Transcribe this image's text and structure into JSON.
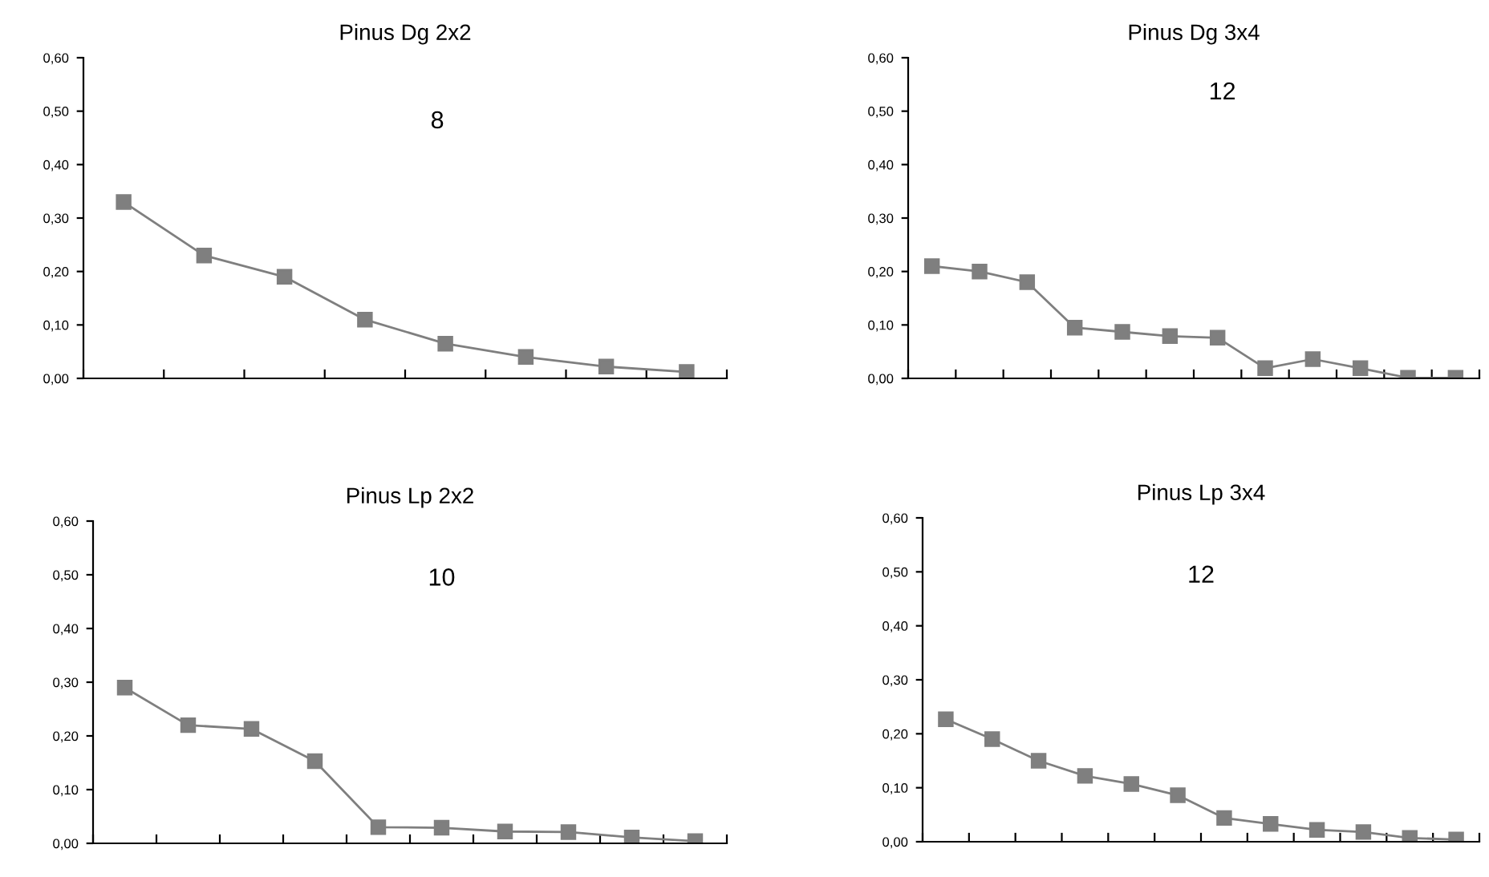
{
  "chart_data": [
    {
      "type": "line",
      "title": "Pinus Dg 2x2",
      "categories": [
        null,
        null,
        null,
        null,
        null,
        null,
        null,
        null
      ],
      "series": [
        {
          "color": "#7f7f7f",
          "values": [
            0.33,
            0.23,
            0.19,
            0.11,
            0.065,
            0.04,
            0.022,
            0.012
          ]
        }
      ],
      "ylim": [
        0,
        0.6
      ],
      "yticks": [
        {
          "value": 0,
          "label": "0,00"
        },
        {
          "value": 0.1,
          "label": "0,10"
        },
        {
          "value": 0.2,
          "label": "0,20"
        },
        {
          "value": 0.3,
          "label": "0,30"
        },
        {
          "value": 0.4,
          "label": "0,40"
        },
        {
          "value": 0.5,
          "label": "0,50"
        },
        {
          "value": 0.6,
          "label": "0,60"
        }
      ],
      "annotations": [
        "8"
      ],
      "marker": "square",
      "grid": false,
      "legend": false,
      "tick_labels": "y"
    },
    {
      "type": "line",
      "title": "Pinus Dg 3x4",
      "categories": [
        null,
        null,
        null,
        null,
        null,
        null,
        null,
        null,
        null,
        null,
        null,
        null
      ],
      "series": [
        {
          "color": "#7f7f7f",
          "values": [
            0.21,
            0.2,
            0.18,
            0.095,
            0.087,
            0.079,
            0.076,
            0.019,
            0.036,
            0.019,
            0.001,
            0.001
          ]
        }
      ],
      "ylim": [
        0,
        0.6
      ],
      "yticks": [
        {
          "value": 0,
          "label": "0,00"
        },
        {
          "value": 0.1,
          "label": "0,10"
        },
        {
          "value": 0.2,
          "label": "0,20"
        },
        {
          "value": 0.3,
          "label": "0,30"
        },
        {
          "value": 0.4,
          "label": "0,40"
        },
        {
          "value": 0.5,
          "label": "0,50"
        },
        {
          "value": 0.6,
          "label": "0,60"
        }
      ],
      "annotations": [
        "12"
      ],
      "marker": "square",
      "grid": false,
      "legend": false,
      "tick_labels": "y"
    },
    {
      "type": "line",
      "title": "Pinus Lp 2x2",
      "categories": [
        null,
        null,
        null,
        null,
        null,
        null,
        null,
        null,
        null,
        null
      ],
      "series": [
        {
          "color": "#7f7f7f",
          "values": [
            0.29,
            0.22,
            0.213,
            0.153,
            0.03,
            0.029,
            0.022,
            0.021,
            0.011,
            0.004
          ]
        }
      ],
      "ylim": [
        0,
        0.6
      ],
      "yticks": [
        {
          "value": 0,
          "label": "0,00"
        },
        {
          "value": 0.1,
          "label": "0,10"
        },
        {
          "value": 0.2,
          "label": "0,20"
        },
        {
          "value": 0.3,
          "label": "0,30"
        },
        {
          "value": 0.4,
          "label": "0,40"
        },
        {
          "value": 0.5,
          "label": "0,50"
        },
        {
          "value": 0.6,
          "label": "0,60"
        }
      ],
      "annotations": [
        "10"
      ],
      "marker": "square",
      "grid": false,
      "legend": false,
      "tick_labels": "y"
    },
    {
      "type": "line",
      "title": "Pinus Lp 3x4",
      "categories": [
        null,
        null,
        null,
        null,
        null,
        null,
        null,
        null,
        null,
        null,
        null,
        null
      ],
      "series": [
        {
          "color": "#7f7f7f",
          "values": [
            0.227,
            0.19,
            0.15,
            0.122,
            0.107,
            0.086,
            0.044,
            0.033,
            0.022,
            0.018,
            0.007,
            0.004
          ]
        }
      ],
      "ylim": [
        0,
        0.6
      ],
      "yticks": [
        {
          "value": 0,
          "label": "0,00"
        },
        {
          "value": 0.1,
          "label": "0,10"
        },
        {
          "value": 0.2,
          "label": "0,20"
        },
        {
          "value": 0.3,
          "label": "0,30"
        },
        {
          "value": 0.4,
          "label": "0,40"
        },
        {
          "value": 0.5,
          "label": "0,50"
        },
        {
          "value": 0.6,
          "label": "0,60"
        }
      ],
      "annotations": [
        "12"
      ],
      "marker": "square",
      "grid": false,
      "legend": false,
      "tick_labels": "y"
    }
  ]
}
